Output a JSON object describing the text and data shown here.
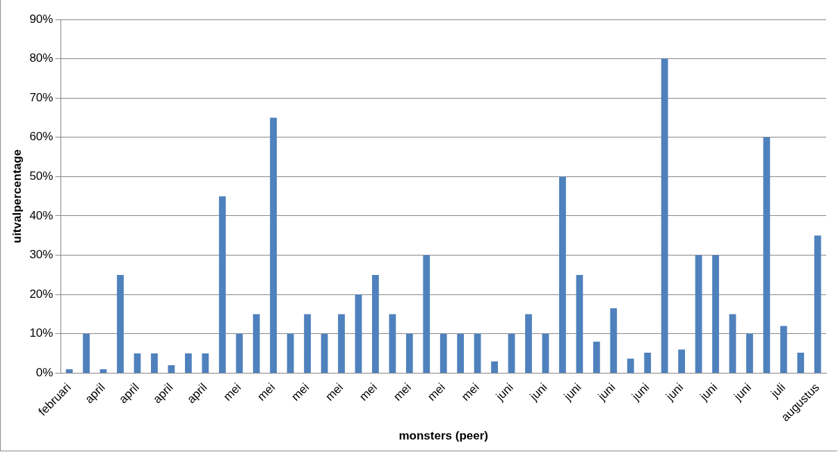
{
  "chart_data": {
    "type": "bar",
    "xlabel": "monsters (peer)",
    "ylabel": "uitvalpercentage",
    "categories": [
      "februari",
      null,
      "april",
      null,
      "april",
      null,
      "april",
      null,
      "april",
      null,
      "mei",
      null,
      "mei",
      null,
      "mei",
      null,
      "mei",
      null,
      "mei",
      null,
      "mei",
      null,
      "mei",
      null,
      "mei",
      null,
      "juni",
      null,
      "juni",
      null,
      "juni",
      null,
      "juni",
      null,
      "juni",
      null,
      "juni",
      null,
      "juni",
      null,
      "juni",
      null,
      "juli",
      null,
      "augustus"
    ],
    "values": [
      1,
      10,
      1,
      25,
      5,
      5,
      2,
      5,
      5,
      45,
      10,
      15,
      65,
      10,
      15,
      10,
      15,
      20,
      25,
      15,
      10,
      30,
      10,
      10,
      10,
      3,
      10,
      15,
      10,
      50,
      25,
      8,
      16.5,
      3.7,
      5.2,
      80,
      6,
      30,
      30,
      15,
      10,
      60,
      12,
      5.2,
      35
    ],
    "color": "#4f81bd",
    "ylim": [
      0,
      90
    ],
    "yticks": [
      {
        "value": 0,
        "label": "0%"
      },
      {
        "value": 10,
        "label": "10%"
      },
      {
        "value": 20,
        "label": "20%"
      },
      {
        "value": 30,
        "label": "30%"
      },
      {
        "value": 40,
        "label": "40%"
      },
      {
        "value": 50,
        "label": "50%"
      },
      {
        "value": 60,
        "label": "60%"
      },
      {
        "value": 70,
        "label": "70%"
      },
      {
        "value": 80,
        "label": "80%"
      },
      {
        "value": 90,
        "label": "90%"
      }
    ],
    "grid": "y",
    "legend": false
  }
}
